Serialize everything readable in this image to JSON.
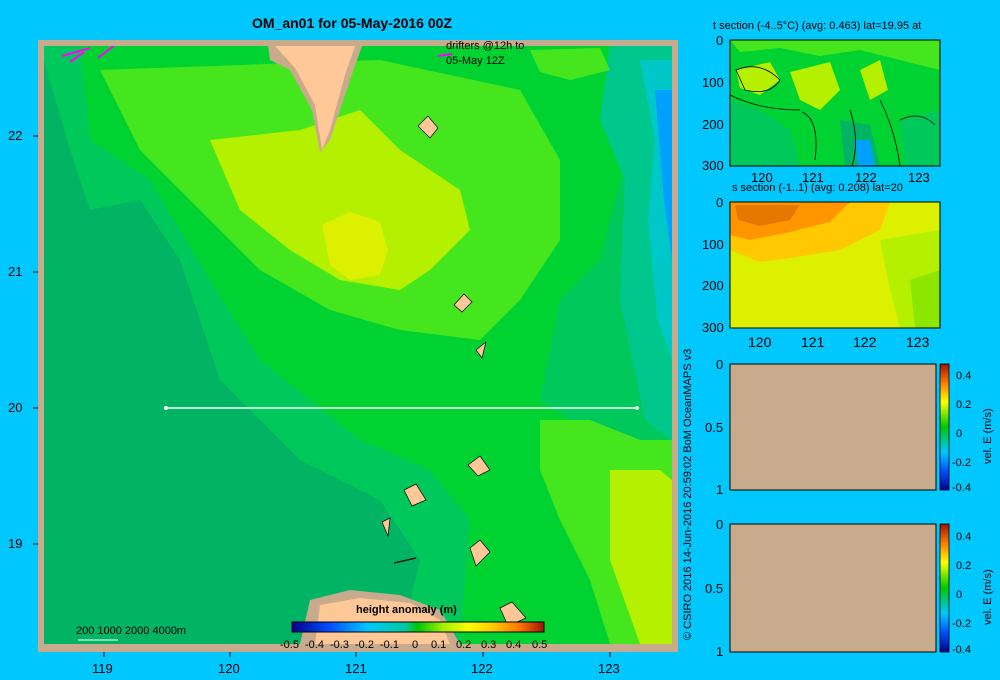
{
  "map": {
    "title": "OM_an01 for 05-May-2016 00Z",
    "drifters_label_1": "drifters @12h to",
    "drifters_label_2": "05-May 12Z",
    "scale_label": "200  1000  2000  4000m",
    "x_ticks": [
      "119",
      "120",
      "121",
      "122",
      "123"
    ],
    "y_ticks": [
      "22",
      "21",
      "20",
      "19"
    ],
    "colorbar_title": "height anomaly (m)",
    "colorbar_ticks": [
      "-0.5",
      "-0.4",
      "-0.3",
      "-0.2",
      "-0.1",
      "0",
      "0.1",
      "0.2",
      "0.3",
      "0.4",
      "0.5"
    ],
    "credit": "© CSIRO 2016   14-Jun-2016 20:59:02 BoM OceanMAPS v3"
  },
  "panels": {
    "t_section": {
      "title": "t section (-4..5°C) (avg: 0.463) lat=19.95 at",
      "y_ticks": [
        "0",
        "100",
        "200",
        "300"
      ],
      "x_ticks": [
        "120",
        "121",
        "122",
        "123"
      ]
    },
    "s_section": {
      "title": "s section (-1..1) (avg: 0.208) lat=20",
      "y_ticks": [
        "0",
        "100",
        "200",
        "300"
      ],
      "x_ticks": [
        "120",
        "121",
        "122",
        "123"
      ]
    },
    "vel_1": {
      "y_ticks": [
        "0",
        "0.5",
        "1"
      ],
      "cbar_ticks": [
        "0.4",
        "0.2",
        "0",
        "-0.2",
        "-0.4"
      ],
      "cbar_label": "vel. E (m/s)"
    },
    "vel_2": {
      "y_ticks": [
        "0",
        "0.5",
        "1"
      ],
      "cbar_ticks": [
        "0.4",
        "0.2",
        "0",
        "-0.2",
        "-0.4"
      ],
      "cbar_label": "vel. E (m/s)"
    }
  },
  "colors": {
    "background": "#00c8ff",
    "land": "#ffc896",
    "shelf": "#c8aa8c",
    "section_line": "#ffffff"
  },
  "chart_data": {
    "type": "heatmap",
    "title": "OM_an01 for 05-May-2016 00Z",
    "xlim": [
      118.5,
      123.5
    ],
    "ylim": [
      18.3,
      22.7
    ],
    "x_ticks": [
      119,
      120,
      121,
      122,
      123
    ],
    "y_ticks": [
      19,
      20,
      21,
      22
    ],
    "variable": "height anomaly (m)",
    "colorbar_range": [
      -0.5,
      0.5
    ],
    "section_line": {
      "lat": 20,
      "lon_start": 119.5,
      "lon_end": 123.2
    },
    "t_section": {
      "range": [
        -4,
        5
      ],
      "avg": 0.463,
      "lat": 19.95,
      "depth_range": [
        0,
        300
      ],
      "x_range": [
        119.5,
        123.2
      ]
    },
    "s_section": {
      "range": [
        -1,
        1
      ],
      "avg": 0.208,
      "lat": 20,
      "depth_range": [
        0,
        300
      ],
      "x_range": [
        119.5,
        123.2
      ]
    },
    "velocity_panels": {
      "range": [
        -0.4,
        0.4
      ],
      "units": "m/s"
    }
  }
}
